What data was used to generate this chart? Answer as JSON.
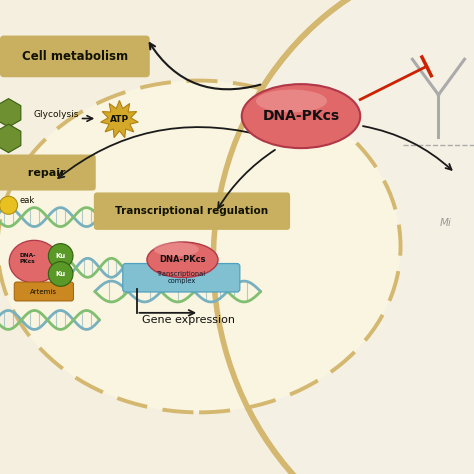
{
  "bg_color": "#f5efe0",
  "cell_fill": "#faf5e0",
  "nucleus_border_color": "#d4b870",
  "outer_cell_color": "#d4b870",
  "cm_box_color": "#c8b060",
  "cm_text": "Cell metabolism",
  "glycolysis_text": "Glycolysis",
  "atp_color": "#d4a828",
  "glucose_color": "#6e9030",
  "dna_pkcs_fill": "#e06868",
  "dna_pkcs_text": "DNA-PKcs",
  "arrow_color": "#1a1a1a",
  "inhibit_color": "#cc2200",
  "repair_box_color": "#c8b060",
  "repair_text": " repair",
  "break_text": "eak",
  "transcriptional_reg_box": "#c8b060",
  "transcriptional_reg_text": "Transcriptional regulation",
  "transcriptional_complex_color": "#80c0d0",
  "gene_expression_text": "Gene expression",
  "artemis_color": "#cc8820",
  "ku_color": "#5a9828",
  "dna_blue": "#78b0c0",
  "dna_green": "#80be70",
  "antibody_color": "#aaaaaa",
  "mi_text": "Mi",
  "outer_border_color": "#d4b870"
}
